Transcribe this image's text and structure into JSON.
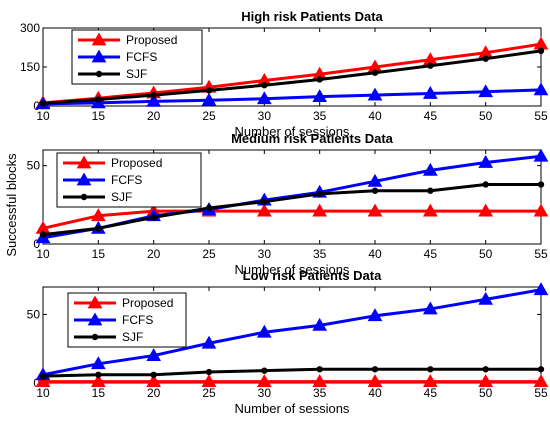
{
  "chart_data": [
    {
      "type": "line",
      "title": "High risk Patients Data",
      "xlabel": "Number of sessions",
      "ylabel": "",
      "x": [
        10,
        15,
        20,
        25,
        30,
        35,
        40,
        45,
        50,
        55
      ],
      "xlim": [
        10,
        55
      ],
      "ylim": [
        0,
        300
      ],
      "yticks": [
        0,
        150,
        300
      ],
      "legend_position": "top-left",
      "series": [
        {
          "name": "Proposed",
          "color": "#ff0000",
          "marker": "triangle",
          "values": [
            12,
            30,
            50,
            72,
            98,
            122,
            150,
            178,
            205,
            238
          ]
        },
        {
          "name": "FCFS",
          "color": "#0000ff",
          "marker": "triangle",
          "values": [
            8,
            12,
            18,
            22,
            28,
            36,
            42,
            48,
            55,
            62
          ]
        },
        {
          "name": "SJF",
          "color": "#000000",
          "marker": "circle",
          "values": [
            10,
            25,
            42,
            60,
            80,
            102,
            128,
            155,
            182,
            212
          ]
        }
      ]
    },
    {
      "type": "line",
      "title": "Medium risk Patients Data",
      "xlabel": "Number of sessions",
      "ylabel": "",
      "x": [
        10,
        15,
        20,
        25,
        30,
        35,
        40,
        45,
        50,
        55
      ],
      "xlim": [
        10,
        55
      ],
      "ylim": [
        0,
        60
      ],
      "yticks": [
        0,
        50
      ],
      "legend_position": "top-left",
      "series": [
        {
          "name": "Proposed",
          "color": "#ff0000",
          "marker": "triangle",
          "values": [
            10,
            18,
            21,
            21,
            21,
            21,
            21,
            21,
            21,
            21
          ]
        },
        {
          "name": "FCFS",
          "color": "#0000ff",
          "marker": "triangle",
          "values": [
            4,
            10,
            18,
            22,
            28,
            33,
            40,
            47,
            52,
            56
          ]
        },
        {
          "name": "SJF",
          "color": "#000000",
          "marker": "circle",
          "values": [
            6,
            10,
            17,
            23,
            27,
            32,
            34,
            34,
            38,
            38
          ]
        }
      ]
    },
    {
      "type": "line",
      "title": "Low risk Patients Data",
      "xlabel": "Number of sessions",
      "ylabel": "",
      "x": [
        10,
        15,
        20,
        25,
        30,
        35,
        40,
        45,
        50,
        55
      ],
      "xlim": [
        10,
        55
      ],
      "ylim": [
        0,
        70
      ],
      "yticks": [
        0,
        50
      ],
      "legend_position": "top-left",
      "series": [
        {
          "name": "Proposed",
          "color": "#ff0000",
          "marker": "triangle",
          "values": [
            1,
            1,
            1,
            1,
            1,
            1,
            1,
            1,
            1,
            1
          ]
        },
        {
          "name": "FCFS",
          "color": "#0000ff",
          "marker": "triangle",
          "values": [
            6,
            14,
            20,
            29,
            37,
            42,
            49,
            54,
            61,
            68
          ]
        },
        {
          "name": "SJF",
          "color": "#000000",
          "marker": "circle",
          "values": [
            5,
            6,
            6,
            8,
            9,
            10,
            10,
            10,
            10,
            10
          ]
        }
      ]
    }
  ],
  "shared_ylabel": "Successful blocks"
}
